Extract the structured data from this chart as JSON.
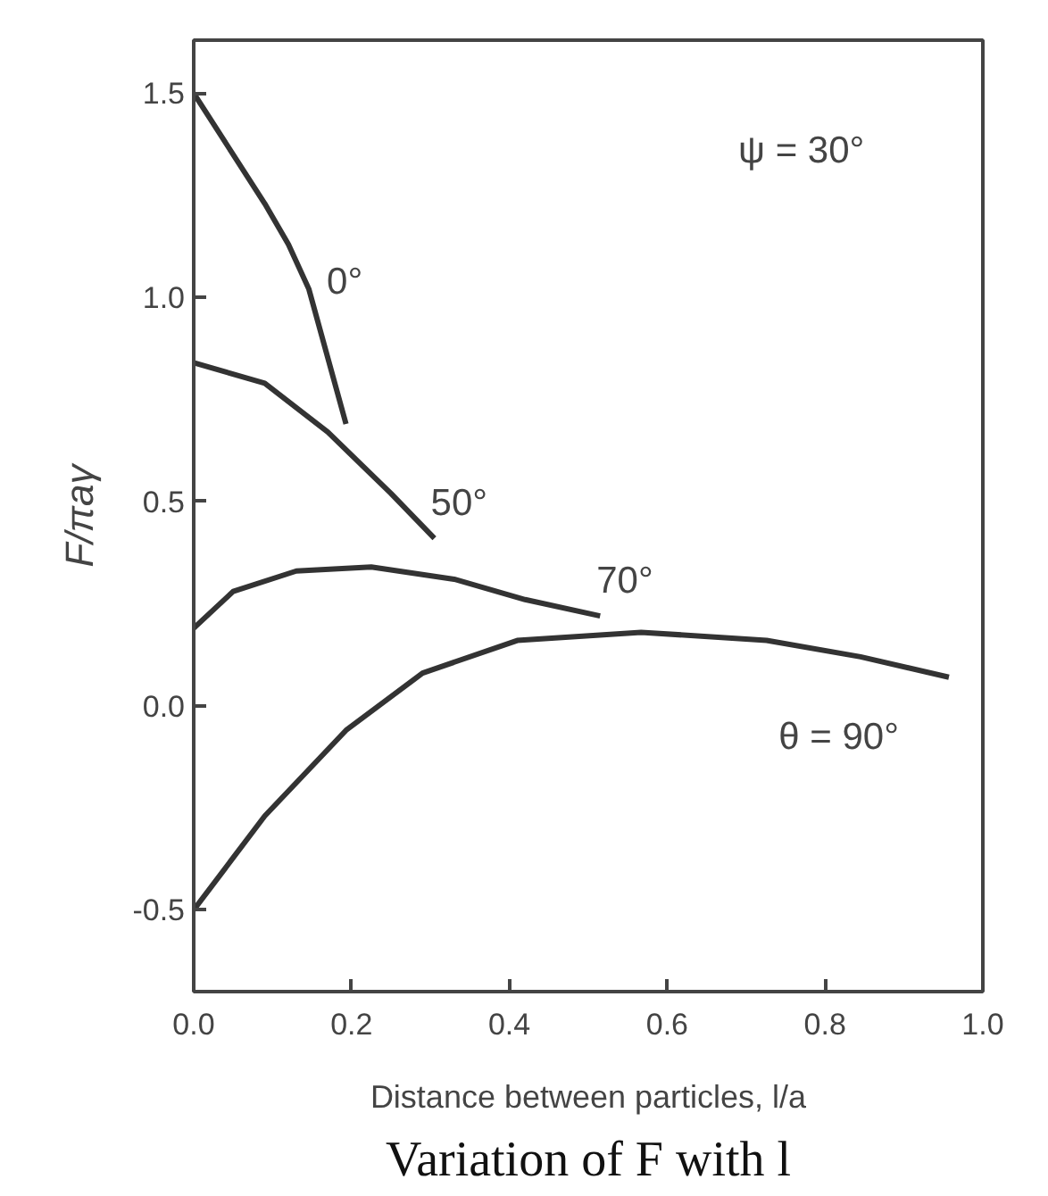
{
  "chart_data": {
    "type": "line",
    "title": "Variation of F with l",
    "xlabel": "Distance between particles, l/a",
    "ylabel": "F/πaγ",
    "xlim": [
      0,
      1.0
    ],
    "ylim": [
      -0.7,
      1.63
    ],
    "xticks": [
      {
        "value": 0,
        "label": "0.0"
      },
      {
        "value": 0.2,
        "label": "0.2"
      },
      {
        "value": 0.4,
        "label": "0.4"
      },
      {
        "value": 0.6,
        "label": "0.6"
      },
      {
        "value": 0.8,
        "label": "0.8"
      },
      {
        "value": 1.0,
        "label": "1.0"
      }
    ],
    "yticks": [
      {
        "value": -0.5,
        "label": "-0.5"
      },
      {
        "value": 0,
        "label": "0.0"
      },
      {
        "value": 0.5,
        "label": "0.5"
      },
      {
        "value": 1.0,
        "label": "1.0"
      },
      {
        "value": 1.5,
        "label": "1.5"
      }
    ],
    "grid": false,
    "marker": "none",
    "line_style": "solid",
    "series": [
      {
        "name": "0°",
        "color": "#333333",
        "x": [
          0,
          0.09,
          0.12,
          0.146,
          0.193
        ],
        "values": [
          1.5,
          1.23,
          1.13,
          1.02,
          0.69
        ]
      },
      {
        "name": "50°",
        "color": "#333333",
        "x": [
          0,
          0.09,
          0.17,
          0.25,
          0.305
        ],
        "values": [
          0.84,
          0.79,
          0.67,
          0.52,
          0.41
        ]
      },
      {
        "name": "70°",
        "color": "#333333",
        "x": [
          0,
          0.05,
          0.13,
          0.225,
          0.33,
          0.42,
          0.515
        ],
        "values": [
          0.19,
          0.28,
          0.33,
          0.34,
          0.31,
          0.26,
          0.22
        ]
      },
      {
        "name": "θ = 90°",
        "color": "#333333",
        "x": [
          0,
          0.09,
          0.193,
          0.29,
          0.41,
          0.567,
          0.726,
          0.845,
          0.957
        ],
        "values": [
          -0.5,
          -0.27,
          -0.06,
          0.08,
          0.16,
          0.18,
          0.16,
          0.12,
          0.07
        ]
      }
    ],
    "annotations": [
      "ψ = 30°"
    ]
  }
}
